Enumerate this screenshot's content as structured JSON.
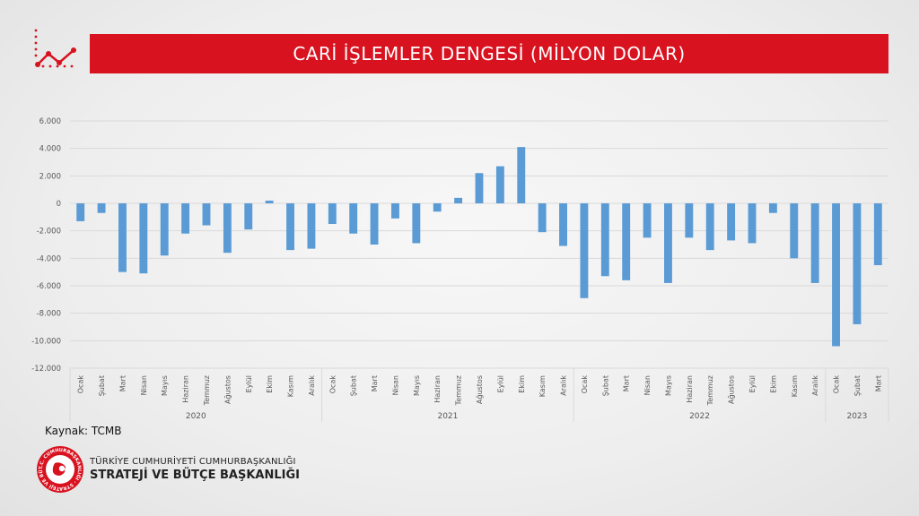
{
  "header": {
    "title": "CARİ İŞLEMLER DENGESİ (MİLYON DOLAR)",
    "logo_icon": "line-chart-icon"
  },
  "source": "Kaynak: TCMB",
  "organization": {
    "line1": "TÜRKİYE CUMHURİYETİ CUMHURBAŞKANLIĞI",
    "line2": "STRATEJİ VE BÜTÇE BAŞKANLIĞI",
    "seal_text": "T.C. CUMHURBAŞKANLIĞI · STRATEJİ VE BÜTÇE BAŞKANLIĞI",
    "seal_icon": "crescent-star-seal-icon"
  },
  "colors": {
    "accent": "#d9121f",
    "bar": "#5b9bd5",
    "grid": "#d9d9d9",
    "axis_text": "#595959"
  },
  "chart_data": {
    "type": "bar",
    "title": "CARİ İŞLEMLER DENGESİ (MİLYON DOLAR)",
    "ylim": [
      -12000,
      6000
    ],
    "yticks": [
      6000,
      4000,
      2000,
      0,
      -2000,
      -4000,
      -6000,
      -8000,
      -10000,
      -12000
    ],
    "ytick_labels": [
      "6.000",
      "4.000",
      "2.000",
      "0",
      "-2.000",
      "-4.000",
      "-6.000",
      "-8.000",
      "-10.000",
      "-12.000"
    ],
    "grid": true,
    "legend": "none",
    "groups": [
      {
        "year": "2020",
        "categories": [
          "Ocak",
          "Şubat",
          "Mart",
          "Nisan",
          "Mayıs",
          "Haziran",
          "Temmuz",
          "Ağustos",
          "Eylül",
          "Ekim",
          "Kasım",
          "Aralık"
        ],
        "values": [
          -1300,
          -700,
          -5000,
          -5100,
          -3800,
          -2200,
          -1600,
          -3600,
          -1900,
          200,
          -3400,
          -3300
        ]
      },
      {
        "year": "2021",
        "categories": [
          "Ocak",
          "Şubat",
          "Mart",
          "Nisan",
          "Mayıs",
          "Haziran",
          "Temmuz",
          "Ağustos",
          "Eylül",
          "Ekim",
          "Kasım",
          "Aralık"
        ],
        "values": [
          -1500,
          -2200,
          -3000,
          -1100,
          -2900,
          -600,
          400,
          2200,
          2700,
          4100,
          -2100,
          -3100
        ]
      },
      {
        "year": "2022",
        "categories": [
          "Ocak",
          "Şubat",
          "Mart",
          "Nisan",
          "Mayıs",
          "Haziran",
          "Temmuz",
          "Ağustos",
          "Eylül",
          "Ekim",
          "Kasım",
          "Aralık"
        ],
        "values": [
          -6900,
          -5300,
          -5600,
          -2500,
          -5800,
          -2500,
          -3400,
          -2700,
          -2900,
          -700,
          -4000,
          -5800
        ]
      },
      {
        "year": "2023",
        "categories": [
          "Ocak",
          "Şubat",
          "Mart"
        ],
        "values": [
          -10400,
          -8800,
          -4500
        ]
      }
    ]
  }
}
